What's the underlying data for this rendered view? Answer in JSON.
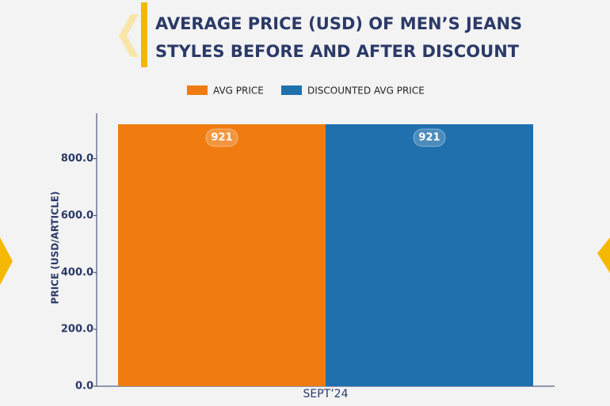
{
  "chart_data": {
    "type": "bar",
    "title": [
      "AVERAGE PRICE (USD) OF MEN’S JEANS",
      "STYLES BEFORE AND AFTER DISCOUNT"
    ],
    "y_label": "PRICE (USD/ARTICLE)",
    "categories": [
      "SEPT’24"
    ],
    "series": [
      {
        "name": "AVG PRICE",
        "color": "#f07c11",
        "values": [
          921
        ]
      },
      {
        "name": "DISCOUNTED AVG PRICE",
        "color": "#1f70ad",
        "values": [
          921
        ]
      }
    ],
    "ylim": [
      0,
      960
    ],
    "yticks": [
      {
        "value": 0,
        "label": "0.0"
      },
      {
        "value": 200,
        "label": "200.0"
      },
      {
        "value": 400,
        "label": "400.0"
      },
      {
        "value": 600,
        "label": "600.0"
      },
      {
        "value": 800,
        "label": "800.0"
      }
    ]
  }
}
